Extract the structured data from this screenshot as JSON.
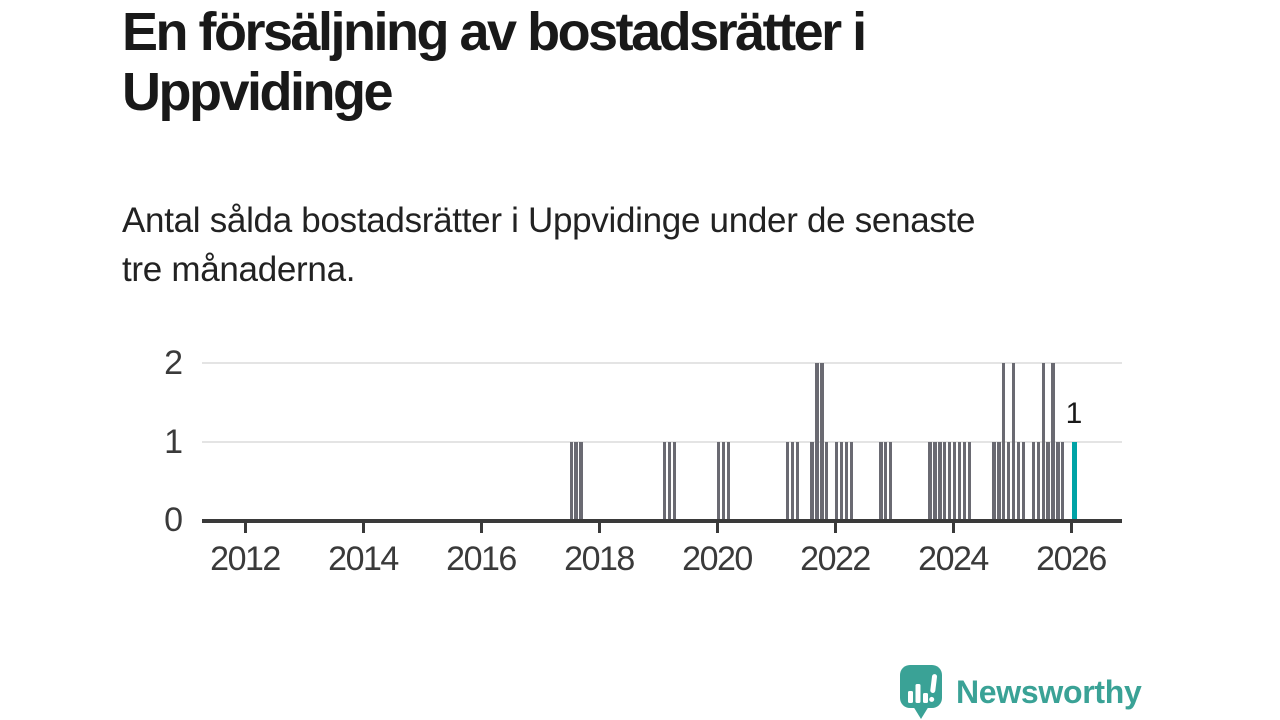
{
  "title": "En försäljning av bostadsrätter i Uppvidinge",
  "title_lines": [
    "En försäljning av bostadsrätter i",
    "Uppvidinge"
  ],
  "subtitle": "Antal sålda bostadsrätter i Uppvidinge under de senaste tre månaderna.",
  "subtitle_lines": [
    "Antal sålda bostadsrätter i Uppvidinge under de senaste",
    "tre månaderna."
  ],
  "branding": {
    "name": "Newsworthy",
    "icon": "newsworthy-speech-bubble-chart-icon",
    "color": "#3aa296"
  },
  "colors": {
    "background": "#ffffff",
    "bar": "#6a6a72",
    "highlight": "#00a3a6",
    "axis": "#3a3a3a",
    "gridline": "#e4e4e4",
    "text": "#191919"
  },
  "chart_data": {
    "type": "bar",
    "title": "En försäljning av bostadsrätter i Uppvidinge",
    "subtitle": "Antal sålda bostadsrätter i Uppvidinge under de senaste tre månaderna.",
    "grid": "horizontal",
    "legend": "none",
    "ylim": [
      0,
      2
    ],
    "y_ticks": [
      0,
      1,
      2
    ],
    "x_ticks": [
      2012,
      2014,
      2016,
      2018,
      2020,
      2022,
      2024,
      2026
    ],
    "x_range": [
      "2011-04",
      "2026-11"
    ],
    "bars": [
      {
        "month": "2017-07",
        "value": 1
      },
      {
        "month": "2017-08",
        "value": 1
      },
      {
        "month": "2017-09",
        "value": 1
      },
      {
        "month": "2019-02",
        "value": 1
      },
      {
        "month": "2019-03",
        "value": 1
      },
      {
        "month": "2019-04",
        "value": 1
      },
      {
        "month": "2020-01",
        "value": 1
      },
      {
        "month": "2020-02",
        "value": 1
      },
      {
        "month": "2020-03",
        "value": 1
      },
      {
        "month": "2021-03",
        "value": 1
      },
      {
        "month": "2021-04",
        "value": 1
      },
      {
        "month": "2021-05",
        "value": 1
      },
      {
        "month": "2021-08",
        "value": 1
      },
      {
        "month": "2021-09",
        "value": 2
      },
      {
        "month": "2021-10",
        "value": 2
      },
      {
        "month": "2021-11",
        "value": 1
      },
      {
        "month": "2022-01",
        "value": 1
      },
      {
        "month": "2022-02",
        "value": 1
      },
      {
        "month": "2022-03",
        "value": 1
      },
      {
        "month": "2022-04",
        "value": 1
      },
      {
        "month": "2022-10",
        "value": 1
      },
      {
        "month": "2022-11",
        "value": 1
      },
      {
        "month": "2022-12",
        "value": 1
      },
      {
        "month": "2023-08",
        "value": 1
      },
      {
        "month": "2023-09",
        "value": 1
      },
      {
        "month": "2023-10",
        "value": 1
      },
      {
        "month": "2023-11",
        "value": 1
      },
      {
        "month": "2023-12",
        "value": 1
      },
      {
        "month": "2024-01",
        "value": 1
      },
      {
        "month": "2024-02",
        "value": 1
      },
      {
        "month": "2024-03",
        "value": 1
      },
      {
        "month": "2024-04",
        "value": 1
      },
      {
        "month": "2024-09",
        "value": 1
      },
      {
        "month": "2024-10",
        "value": 1
      },
      {
        "month": "2024-11",
        "value": 2
      },
      {
        "month": "2024-12",
        "value": 1
      },
      {
        "month": "2025-01",
        "value": 2
      },
      {
        "month": "2025-02",
        "value": 1
      },
      {
        "month": "2025-03",
        "value": 1
      },
      {
        "month": "2025-05",
        "value": 1
      },
      {
        "month": "2025-06",
        "value": 1
      },
      {
        "month": "2025-07",
        "value": 2
      },
      {
        "month": "2025-08",
        "value": 1
      },
      {
        "month": "2025-09",
        "value": 2
      },
      {
        "month": "2025-10",
        "value": 1
      },
      {
        "month": "2025-11",
        "value": 1
      }
    ],
    "highlight_bar": {
      "month": "2026-01",
      "value": 1,
      "label": "1"
    }
  }
}
